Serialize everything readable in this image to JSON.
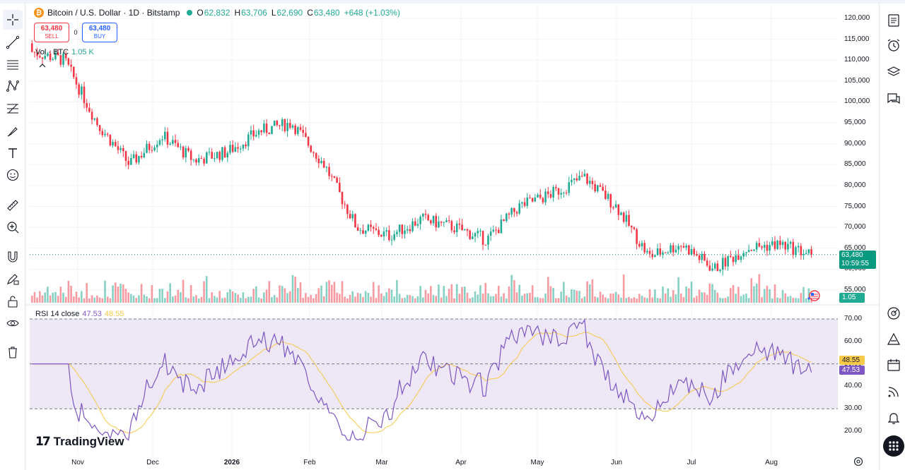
{
  "header": {
    "coin_icon": "bitcoin-coin-icon",
    "symbol_title": "Bitcoin / U.S. Dollar · 1D · Bitstamp",
    "ohlc": {
      "o_label": "O",
      "o_value": "62,832",
      "h_label": "H",
      "h_value": "63,706",
      "l_label": "L",
      "l_value": "62,690",
      "c_label": "C",
      "c_value": "63,480",
      "change": "+648 (+1.03%)"
    }
  },
  "trade": {
    "sell_price": "63,480",
    "sell_label": "SELL",
    "spread": "0",
    "buy_price": "63,480",
    "buy_label": "BUY"
  },
  "volume_legend": {
    "label": "Vol · BTC",
    "value": "1.05 K"
  },
  "rsi_legend": {
    "label": "RSI 14 close",
    "rsi_value": "47.53",
    "ma_value": "48.55"
  },
  "branding": {
    "logo_text": "TradingView"
  },
  "price_axis": {
    "labels": [
      "120,000",
      "115,000",
      "110,000",
      "105,000",
      "100,000",
      "95,000",
      "90,000",
      "85,000",
      "80,000",
      "75,000",
      "70,000",
      "65,000",
      "60,000",
      "55,000"
    ],
    "current_price": "63,480",
    "countdown": "10:59:55",
    "volume_tag": "1.05 K"
  },
  "rsi_axis": {
    "labels": [
      "70.00",
      "60.00",
      "50.00",
      "40.00",
      "30.00",
      "20.00"
    ],
    "ma_tag": "48.55",
    "rsi_tag": "47.53"
  },
  "time_axis": {
    "labels": [
      "Nov",
      "Dec",
      "2026",
      "Feb",
      "Mar",
      "Apr",
      "May",
      "Jun",
      "Jul",
      "Aug"
    ]
  },
  "colors": {
    "up": "#22ab94",
    "down": "#f23645",
    "rsi_line": "#7e57c2",
    "rsi_ma": "#f7c948",
    "rsi_band": "#ede7f6"
  },
  "left_toolbar": [
    "crosshair-icon",
    "trend-line-icon",
    "horizontal-lines-icon",
    "pattern-icon",
    "fib-retracement-icon",
    "brush-icon",
    "text-icon",
    "emoji-icon",
    "ruler-icon",
    "zoom-in-icon",
    "magnet-icon",
    "pencil-lock-icon",
    "lock-icon",
    "eye-icon",
    "trash-icon"
  ],
  "right_toolbar": [
    "watchlist-icon",
    "alarm-clock-icon",
    "layers-icon",
    "chat-icon",
    "target-icon",
    "pattern-triangle-icon",
    "calendar-icon",
    "broadcast-icon",
    "bell-icon",
    "apps-grid-icon"
  ],
  "chart_data": {
    "type": "candlestick",
    "title": "Bitcoin / U.S. Dollar · 1D · Bitstamp",
    "ylim": [
      52000,
      122000
    ],
    "monthly_path": [
      {
        "x": "Oct end",
        "close": 112000
      },
      {
        "x": "Nov",
        "close": 110000
      },
      {
        "x": "Nov mid",
        "close": 95000
      },
      {
        "x": "Nov end",
        "close": 85000
      },
      {
        "x": "Dec",
        "close": 92000
      },
      {
        "x": "Dec mid",
        "close": 86000
      },
      {
        "x": "Dec end",
        "close": 88000
      },
      {
        "x": "2026",
        "close": 93000
      },
      {
        "x": "Jan mid",
        "close": 95000
      },
      {
        "x": "Jan end",
        "close": 85000
      },
      {
        "x": "Feb",
        "close": 70000
      },
      {
        "x": "Feb mid",
        "close": 68000
      },
      {
        "x": "Mar",
        "close": 72000
      },
      {
        "x": "Mar mid",
        "close": 70000
      },
      {
        "x": "Apr",
        "close": 67000
      },
      {
        "x": "Apr mid",
        "close": 75000
      },
      {
        "x": "May",
        "close": 78000
      },
      {
        "x": "May mid",
        "close": 82000
      },
      {
        "x": "May end",
        "close": 75000
      },
      {
        "x": "Jun",
        "close": 63000
      },
      {
        "x": "Jun mid",
        "close": 66000
      },
      {
        "x": "Jul",
        "close": 60000
      },
      {
        "x": "Jul mid",
        "close": 65000
      },
      {
        "x": "Aug",
        "close": 66000
      },
      {
        "x": "Aug mid",
        "close": 63480
      }
    ],
    "rsi_range": [
      15,
      72
    ],
    "rsi_levels": [
      70,
      50,
      30
    ],
    "current": {
      "rsi": 47.53,
      "rsi_ma": 48.55,
      "price": 63480
    }
  }
}
